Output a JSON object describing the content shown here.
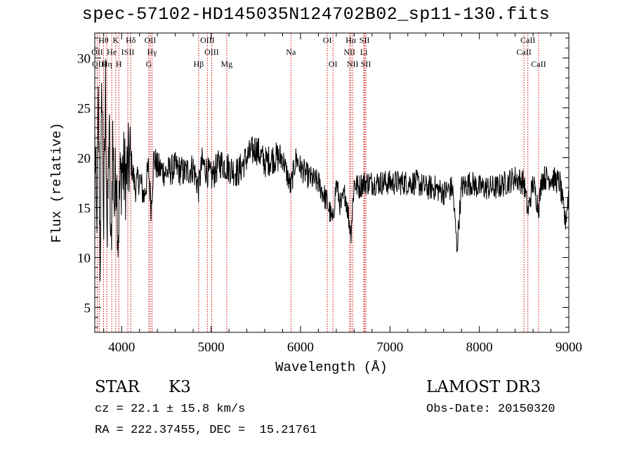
{
  "chart_data": {
    "type": "line",
    "title": "spec-57102-HD145035N124702B02_sp11-130.fits",
    "xlabel": "Wavelength (Å)",
    "ylabel": "Flux (relative)",
    "xlim": [
      3700,
      9000
    ],
    "ylim": [
      2.5,
      32.5
    ],
    "x_ticks": [
      4000,
      5000,
      6000,
      7000,
      8000,
      9000
    ],
    "y_ticks": [
      5,
      10,
      15,
      20,
      25,
      30
    ],
    "grid": false,
    "series": [
      {
        "x": [
          3700,
          3720,
          3740,
          3760,
          3780,
          3800,
          3820,
          3840,
          3860,
          3880,
          3900,
          3920,
          3940,
          3960,
          3980,
          4000,
          4050,
          4100,
          4150,
          4200,
          4250,
          4300,
          4330,
          4360,
          4400,
          4500,
          4600,
          4700,
          4800,
          4860,
          4900,
          5000,
          5100,
          5200,
          5300,
          5400,
          5500,
          5600,
          5700,
          5800,
          5890,
          5950,
          6000,
          6100,
          6200,
          6300,
          6360,
          6400,
          6450,
          6500,
          6563,
          6600,
          6650,
          6700,
          6750,
          6800,
          6900,
          7000,
          7100,
          7200,
          7300,
          7400,
          7500,
          7600,
          7700,
          7750,
          7800,
          7900,
          8000,
          8100,
          8200,
          8300,
          8400,
          8500,
          8542,
          8600,
          8662,
          8700,
          8800,
          8900,
          8960,
          9000
        ],
        "y": [
          22,
          13,
          25,
          10,
          28,
          13,
          27,
          11,
          24,
          9,
          22,
          15,
          20,
          12,
          17,
          19,
          18,
          20,
          17,
          18,
          16,
          19,
          15,
          20,
          19,
          18.5,
          19,
          18.5,
          19,
          17,
          19.5,
          18,
          19.5,
          19,
          18.5,
          20,
          21,
          19.5,
          20,
          20,
          17,
          20,
          19,
          18,
          17.5,
          15.5,
          13.5,
          17.5,
          15,
          16.5,
          12.5,
          17.5,
          17,
          17.5,
          17.5,
          17.5,
          17.5,
          17.5,
          17.5,
          17.5,
          17.5,
          17,
          17,
          16.5,
          17,
          11,
          17,
          17.5,
          17,
          17,
          17,
          17.5,
          18,
          17.5,
          14.5,
          17.5,
          15,
          18,
          18,
          17.5,
          13.5,
          16.5
        ]
      }
    ],
    "lines": [
      {
        "label": "Hθ",
        "x": 3798,
        "row": 0
      },
      {
        "label": "K",
        "x": 3934,
        "row": 0
      },
      {
        "label": "Hδ",
        "x": 4102,
        "row": 0
      },
      {
        "label": "OII",
        "x": 4320,
        "row": 0
      },
      {
        "label": "OIII",
        "x": 4959,
        "row": 0
      },
      {
        "label": "OI",
        "x": 6300,
        "row": 0
      },
      {
        "label": "Hα",
        "x": 6563,
        "row": 0
      },
      {
        "label": "SII",
        "x": 6716,
        "row": 0
      },
      {
        "label": "CaII",
        "x": 8542,
        "row": 0
      },
      {
        "label": "OII",
        "x": 3727,
        "row": 1
      },
      {
        "label": "He",
        "x": 3889,
        "row": 1
      },
      {
        "label": "ISII",
        "x": 4069,
        "row": 1
      },
      {
        "label": "Hγ",
        "x": 4340,
        "row": 1
      },
      {
        "label": "OIII",
        "x": 5007,
        "row": 1
      },
      {
        "label": "Na",
        "x": 5893,
        "row": 1
      },
      {
        "label": "NII",
        "x": 6548,
        "row": 1
      },
      {
        "label": "Li",
        "x": 6708,
        "row": 1
      },
      {
        "label": "CaII",
        "x": 8498,
        "row": 1
      },
      {
        "label": "OIII",
        "x": 3750,
        "row": 2
      },
      {
        "label": "Hη",
        "x": 3835,
        "row": 2
      },
      {
        "label": "H",
        "x": 3969,
        "row": 2
      },
      {
        "label": "G",
        "x": 4304,
        "row": 2
      },
      {
        "label": "Hβ",
        "x": 4861,
        "row": 2
      },
      {
        "label": "Mg",
        "x": 5175,
        "row": 2
      },
      {
        "label": "OI",
        "x": 6363,
        "row": 2
      },
      {
        "label": "NII",
        "x": 6583,
        "row": 2
      },
      {
        "label": "SII",
        "x": 6731,
        "row": 2
      },
      {
        "label": "CaII",
        "x": 8662,
        "row": 2
      }
    ],
    "colors": {
      "spectrum": "#000000",
      "line_markers": "#cc0000"
    }
  },
  "info": {
    "object_class": "STAR",
    "subclass": "K3",
    "survey": "LAMOST DR3",
    "redshift_line": "cz = 22.1 ± 15.8 km/s",
    "obs_date": "Obs-Date: 20150320",
    "coords": "RA = 222.37455, DEC =  15.21761"
  }
}
